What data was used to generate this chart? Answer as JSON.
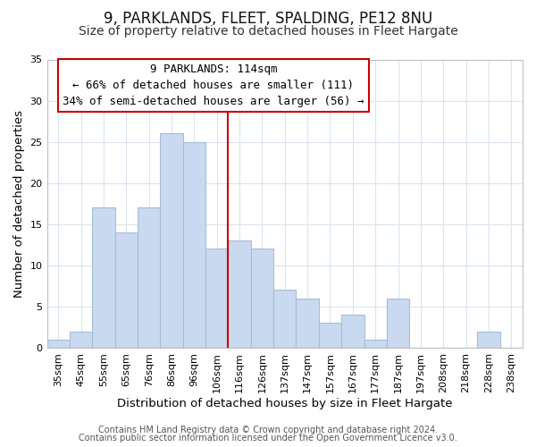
{
  "title": "9, PARKLANDS, FLEET, SPALDING, PE12 8NU",
  "subtitle": "Size of property relative to detached houses in Fleet Hargate",
  "xlabel": "Distribution of detached houses by size in Fleet Hargate",
  "ylabel": "Number of detached properties",
  "footer_line1": "Contains HM Land Registry data © Crown copyright and database right 2024.",
  "footer_line2": "Contains public sector information licensed under the Open Government Licence v3.0.",
  "categories": [
    "35sqm",
    "45sqm",
    "55sqm",
    "65sqm",
    "76sqm",
    "86sqm",
    "96sqm",
    "106sqm",
    "116sqm",
    "126sqm",
    "137sqm",
    "147sqm",
    "157sqm",
    "167sqm",
    "177sqm",
    "187sqm",
    "197sqm",
    "208sqm",
    "218sqm",
    "228sqm",
    "238sqm"
  ],
  "values": [
    1,
    2,
    17,
    14,
    17,
    26,
    25,
    12,
    13,
    12,
    7,
    6,
    3,
    4,
    1,
    6,
    0,
    0,
    0,
    2,
    0
  ],
  "bar_color": "#c9d9f0",
  "bar_edge_color": "#a8bcd8",
  "marker_index": 8,
  "marker_color": "#cc0000",
  "annotation_title": "9 PARKLANDS: 114sqm",
  "annotation_line1": "← 66% of detached houses are smaller (111)",
  "annotation_line2": "34% of semi-detached houses are larger (56) →",
  "annotation_box_color": "#ffffff",
  "annotation_box_edge_color": "#cc0000",
  "ylim": [
    0,
    35
  ],
  "yticks": [
    0,
    5,
    10,
    15,
    20,
    25,
    30,
    35
  ],
  "background_color": "#ffffff",
  "grid_color": "#d8e4f0",
  "title_fontsize": 12,
  "subtitle_fontsize": 10,
  "axis_label_fontsize": 9.5,
  "tick_fontsize": 8,
  "annotation_fontsize": 9,
  "footer_fontsize": 7
}
